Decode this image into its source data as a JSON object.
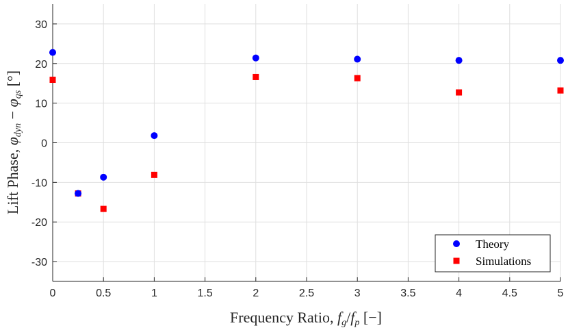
{
  "chart_data": {
    "type": "scatter",
    "xlabel": "Frequency Ratio, f_g/f_p [−]",
    "ylabel": "Lift Phase, φ_dyn − φ_qs [°]",
    "xlim": [
      0,
      5
    ],
    "ylim": [
      -35,
      35
    ],
    "xticks": [
      0,
      0.5,
      1,
      1.5,
      2,
      2.5,
      3,
      3.5,
      4,
      4.5,
      5
    ],
    "xtick_labels": [
      "0",
      "0.5",
      "1",
      "1.5",
      "2",
      "2.5",
      "3",
      "3.5",
      "4",
      "4.5",
      "5"
    ],
    "yticks": [
      -30,
      -20,
      -10,
      0,
      10,
      20,
      30
    ],
    "ytick_labels": [
      "-30",
      "-20",
      "-10",
      "0",
      "10",
      "20",
      "30"
    ],
    "grid": true,
    "legend_position": "bottom-right",
    "series": [
      {
        "name": "Theory",
        "marker": "circle",
        "color": "#0000ff",
        "x": [
          0,
          0.25,
          0.5,
          1,
          2,
          3,
          4,
          5
        ],
        "y": [
          22.8,
          -12.8,
          -8.7,
          1.8,
          21.4,
          21.1,
          20.8,
          20.8
        ]
      },
      {
        "name": "Simulations",
        "marker": "square",
        "color": "#ff0000",
        "x": [
          0,
          0.25,
          0.5,
          1,
          2,
          3,
          4,
          5
        ],
        "y": [
          15.9,
          -12.8,
          -16.7,
          -8.1,
          16.6,
          16.3,
          12.7,
          13.2
        ]
      }
    ]
  }
}
